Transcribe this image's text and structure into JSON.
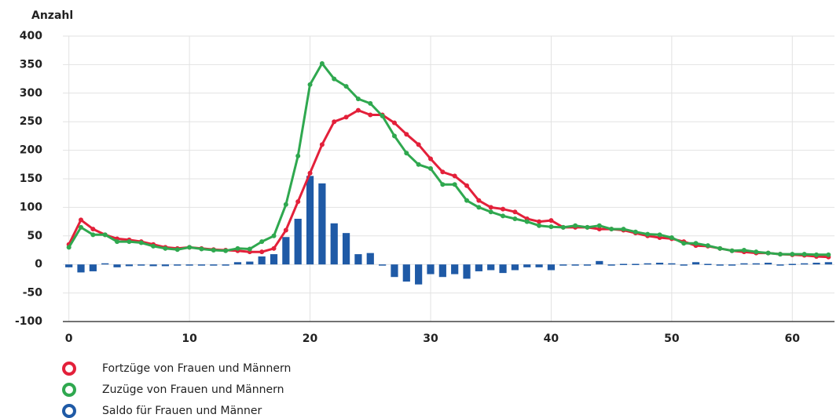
{
  "chart_data": {
    "type": "line",
    "y_label": "Anzahl",
    "x": [
      0,
      1,
      2,
      3,
      4,
      5,
      6,
      7,
      8,
      9,
      10,
      11,
      12,
      13,
      14,
      15,
      16,
      17,
      18,
      19,
      20,
      21,
      22,
      23,
      24,
      25,
      26,
      27,
      28,
      29,
      30,
      31,
      32,
      33,
      34,
      35,
      36,
      37,
      38,
      39,
      40,
      41,
      42,
      43,
      44,
      45,
      46,
      47,
      48,
      49,
      50,
      51,
      52,
      53,
      54,
      55,
      56,
      57,
      58,
      59,
      60,
      61,
      62,
      63
    ],
    "series": [
      {
        "name": "Fortzüge von Frauen und Männern",
        "type": "line",
        "color": "#e3203a",
        "values": [
          35,
          78,
          62,
          52,
          45,
          43,
          40,
          35,
          30,
          28,
          30,
          28,
          26,
          25,
          24,
          22,
          22,
          28,
          60,
          110,
          160,
          210,
          250,
          258,
          270,
          262,
          262,
          248,
          228,
          210,
          185,
          162,
          155,
          138,
          112,
          100,
          97,
          92,
          80,
          75,
          77,
          65,
          65,
          65,
          62,
          62,
          60,
          55,
          50,
          47,
          45,
          40,
          33,
          32,
          28,
          24,
          22,
          20,
          20,
          18,
          17,
          16,
          14,
          13
        ]
      },
      {
        "name": "Zuzüge von Frauen und Männern",
        "type": "line",
        "color": "#2fa84f",
        "values": [
          30,
          65,
          52,
          52,
          40,
          40,
          38,
          32,
          28,
          26,
          30,
          27,
          25,
          24,
          28,
          27,
          40,
          50,
          105,
          190,
          315,
          352,
          325,
          312,
          290,
          282,
          260,
          225,
          195,
          175,
          168,
          140,
          140,
          112,
          100,
          92,
          85,
          80,
          75,
          68,
          66,
          65,
          68,
          65,
          68,
          62,
          62,
          57,
          53,
          52,
          47,
          37,
          37,
          33,
          28,
          24,
          25,
          22,
          20,
          18,
          18,
          18,
          17,
          17
        ]
      },
      {
        "name": "Saldo für Frauen und Männer",
        "type": "bar",
        "color": "#1f5aa6",
        "values": [
          -5,
          -14,
          -12,
          2,
          -5,
          -3,
          -2,
          -3,
          -3,
          -2,
          0,
          -2,
          -1,
          -1,
          4,
          5,
          14,
          18,
          48,
          80,
          155,
          142,
          72,
          55,
          18,
          20,
          -2,
          -22,
          -30,
          -35,
          -17,
          -22,
          -17,
          -25,
          -12,
          -10,
          -15,
          -10,
          -5,
          -5,
          -10,
          0,
          -1,
          -1,
          6,
          -1,
          1,
          1,
          2,
          3,
          2,
          -2,
          4,
          1,
          -2,
          0,
          2,
          2,
          3,
          0,
          1,
          2,
          3,
          4
        ]
      }
    ],
    "xlim": [
      -0.5,
      63.5
    ],
    "xticks": [
      0,
      10,
      20,
      30,
      40,
      50,
      60
    ],
    "ylim": [
      -100,
      400
    ],
    "yticks": [
      -100,
      -50,
      0,
      50,
      100,
      150,
      200,
      250,
      300,
      350,
      400
    ],
    "grid": true,
    "legend": "bottom-left"
  }
}
